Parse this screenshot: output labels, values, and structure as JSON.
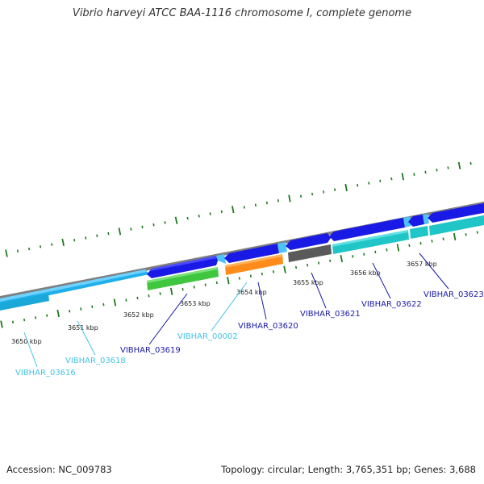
{
  "title": "Vibrio harveyi ATCC BAA-1116 chromosome I, complete genome",
  "footer": {
    "accession": "Accession: NC_009783",
    "summary": "Topology: circular; Length: 3,765,351 bp; Genes: 3,688"
  },
  "colors": {
    "backbone": "#7f7f7f",
    "tick": "#1e7a1e",
    "cds_forward": "#1a1ae6",
    "cds_forward_light": "#4fc3f7",
    "cds_cyan": "#20c5c8",
    "cds_green": "#3ec63e",
    "cds_orange": "#ff8c1a",
    "cds_gray": "#5a5a5a",
    "label_dark": "#1a1aa8",
    "label_light": "#45c3e6"
  },
  "ticks": [
    {
      "label": "3650 kbp",
      "kbp": 3650
    },
    {
      "label": "3651 kbp",
      "kbp": 3651
    },
    {
      "label": "3652 kbp",
      "kbp": 3652
    },
    {
      "label": "3653 kbp",
      "kbp": 3653
    },
    {
      "label": "3654 kbp",
      "kbp": 3654
    },
    {
      "label": "3655 kbp",
      "kbp": 3655
    },
    {
      "label": "3656 kbp",
      "kbp": 3656
    },
    {
      "label": "3657 kbp",
      "kbp": 3657
    }
  ],
  "genes": [
    {
      "label": "VIBHAR_03616",
      "color": "label_light"
    },
    {
      "label": "VIBHAR_03618",
      "color": "label_light"
    },
    {
      "label": "VIBHAR_03619",
      "color": "label_dark"
    },
    {
      "label": "VIBHAR_00002",
      "color": "label_light"
    },
    {
      "label": "VIBHAR_03620",
      "color": "label_dark"
    },
    {
      "label": "VIBHAR_03621",
      "color": "label_dark"
    },
    {
      "label": "VIBHAR_03622",
      "color": "label_dark"
    },
    {
      "label": "VIBHAR_03623",
      "color": "label_dark"
    }
  ]
}
